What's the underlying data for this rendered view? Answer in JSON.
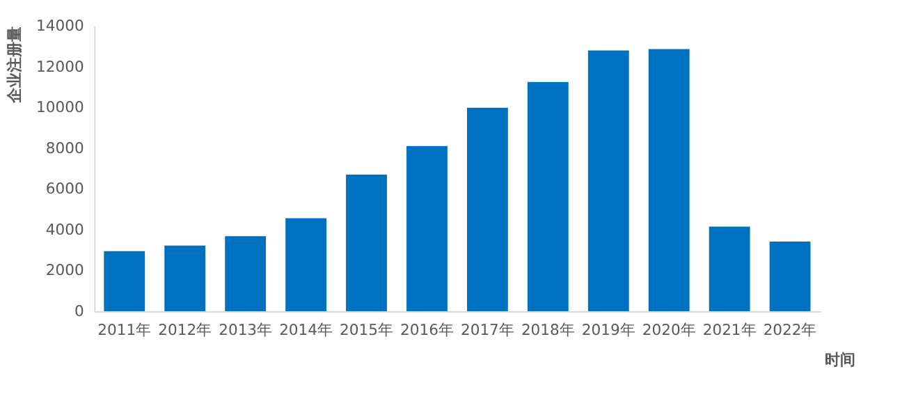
{
  "chart_data": {
    "type": "bar",
    "xlabel": "时间",
    "ylabel": "企业注册量",
    "categories": [
      "2011年",
      "2012年",
      "2013年",
      "2014年",
      "2015年",
      "2016年",
      "2017年",
      "2018年",
      "2019年",
      "2020年",
      "2021年",
      "2022年"
    ],
    "values": [
      2950,
      3220,
      3680,
      4560,
      6700,
      8100,
      9980,
      11250,
      12790,
      12860,
      4150,
      3420
    ],
    "color": "#0070c0",
    "ylim": [
      0,
      14000
    ],
    "yticks": [
      0,
      2000,
      4000,
      6000,
      8000,
      10000,
      12000,
      14000
    ],
    "grid": false
  }
}
